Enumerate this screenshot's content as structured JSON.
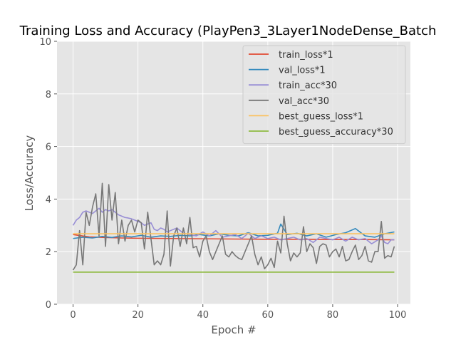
{
  "chart_data": {
    "type": "line",
    "title": "Training Loss and Accuracy (PlayPen3_3Layer1NodeDense_Batch",
    "xlabel": "Epoch #",
    "ylabel": "Loss/Accuracy",
    "xlim": [
      -4.95,
      103.95
    ],
    "ylim": [
      0,
      10
    ],
    "xticks": [
      0,
      20,
      40,
      60,
      80,
      100
    ],
    "yticks": [
      0,
      2,
      4,
      6,
      8,
      10
    ],
    "grid": true,
    "legend_position": "top-right",
    "series": [
      {
        "name": "train_loss*1",
        "color": "#e24a33",
        "x": [
          0,
          5,
          10,
          15,
          20,
          30,
          40,
          50,
          60,
          70,
          80,
          90,
          99
        ],
        "y": [
          2.65,
          2.56,
          2.54,
          2.52,
          2.51,
          2.5,
          2.49,
          2.48,
          2.47,
          2.47,
          2.46,
          2.46,
          2.45
        ]
      },
      {
        "name": "val_loss*1",
        "color": "#348abd",
        "x": [
          0,
          3,
          6,
          9,
          12,
          15,
          18,
          21,
          24,
          27,
          30,
          33,
          36,
          39,
          42,
          45,
          48,
          51,
          54,
          57,
          60,
          63,
          64,
          66,
          69,
          72,
          75,
          78,
          81,
          84,
          87,
          90,
          93,
          96,
          99
        ],
        "y": [
          2.5,
          2.55,
          2.52,
          2.58,
          2.54,
          2.6,
          2.56,
          2.62,
          2.55,
          2.6,
          2.58,
          2.62,
          2.6,
          2.65,
          2.6,
          2.68,
          2.62,
          2.6,
          2.72,
          2.6,
          2.62,
          2.7,
          3.05,
          2.65,
          2.7,
          2.6,
          2.68,
          2.55,
          2.65,
          2.72,
          2.88,
          2.6,
          2.55,
          2.68,
          2.75
        ]
      },
      {
        "name": "train_acc*30",
        "color": "#988ed5",
        "x": [
          0,
          1,
          2,
          3,
          4,
          5,
          6,
          7,
          8,
          9,
          10,
          11,
          12,
          13,
          14,
          15,
          16,
          17,
          18,
          19,
          20,
          21,
          22,
          23,
          24,
          25,
          26,
          27,
          28,
          29,
          30,
          32,
          34,
          36,
          38,
          40,
          42,
          44,
          46,
          48,
          50,
          52,
          54,
          56,
          58,
          60,
          62,
          64,
          66,
          68,
          70,
          72,
          74,
          76,
          78,
          80,
          82,
          84,
          86,
          88,
          90,
          92,
          94,
          95,
          96,
          97,
          98,
          99
        ],
        "y": [
          3.0,
          3.2,
          3.3,
          3.5,
          3.55,
          3.5,
          3.45,
          3.55,
          3.65,
          3.5,
          3.6,
          3.55,
          3.6,
          3.5,
          3.4,
          3.35,
          3.3,
          3.28,
          3.25,
          3.2,
          3.15,
          3.1,
          3.0,
          3.05,
          3.1,
          2.85,
          2.8,
          2.9,
          2.85,
          2.75,
          2.8,
          2.9,
          2.7,
          2.65,
          2.6,
          2.75,
          2.6,
          2.8,
          2.55,
          2.6,
          2.65,
          2.5,
          2.7,
          2.5,
          2.6,
          2.5,
          2.55,
          2.45,
          2.5,
          2.55,
          2.45,
          2.5,
          2.35,
          2.55,
          2.5,
          2.45,
          2.55,
          2.4,
          2.55,
          2.45,
          2.5,
          2.3,
          2.45,
          2.6,
          2.35,
          2.3,
          2.45,
          2.45
        ]
      },
      {
        "name": "val_acc*30",
        "color": "#777777",
        "x": [
          0,
          1,
          2,
          3,
          4,
          5,
          6,
          7,
          8,
          9,
          10,
          11,
          12,
          13,
          14,
          15,
          16,
          17,
          18,
          19,
          20,
          21,
          22,
          23,
          24,
          25,
          26,
          27,
          28,
          29,
          30,
          31,
          32,
          33,
          34,
          35,
          36,
          37,
          38,
          39,
          40,
          41,
          42,
          43,
          44,
          45,
          46,
          47,
          48,
          49,
          50,
          51,
          52,
          53,
          54,
          55,
          56,
          57,
          58,
          59,
          60,
          61,
          62,
          63,
          64,
          65,
          66,
          67,
          68,
          69,
          70,
          71,
          72,
          73,
          74,
          75,
          76,
          77,
          78,
          79,
          80,
          81,
          82,
          83,
          84,
          85,
          86,
          87,
          88,
          89,
          90,
          91,
          92,
          93,
          94,
          95,
          96,
          97,
          98,
          99
        ],
        "y": [
          1.3,
          1.5,
          2.8,
          1.5,
          3.5,
          3.0,
          3.7,
          4.2,
          2.6,
          4.6,
          2.2,
          4.55,
          3.2,
          4.25,
          2.3,
          3.2,
          2.4,
          3.0,
          3.2,
          2.75,
          3.2,
          3.1,
          2.1,
          3.5,
          2.5,
          1.5,
          1.65,
          1.5,
          1.9,
          3.55,
          1.45,
          2.6,
          2.9,
          2.2,
          2.9,
          2.3,
          3.3,
          2.15,
          2.2,
          1.8,
          2.4,
          2.6,
          2.0,
          1.7,
          2.0,
          2.3,
          2.6,
          1.9,
          1.8,
          2.0,
          1.85,
          1.75,
          1.7,
          2.0,
          2.3,
          2.6,
          1.9,
          1.5,
          1.8,
          1.35,
          1.5,
          1.75,
          1.4,
          2.4,
          1.95,
          3.35,
          2.3,
          1.65,
          1.95,
          1.8,
          1.95,
          2.95,
          2.0,
          2.3,
          2.15,
          1.55,
          2.2,
          2.3,
          2.25,
          1.8,
          2.0,
          2.1,
          1.8,
          2.2,
          1.65,
          1.7,
          2.0,
          2.25,
          1.7,
          1.85,
          2.2,
          1.65,
          1.6,
          2.0,
          2.0,
          3.15,
          1.75,
          1.85,
          1.8,
          2.2
        ]
      },
      {
        "name": "best_guess_loss*1",
        "color": "#fbc15e",
        "x": [
          0,
          99
        ],
        "y": [
          2.68,
          2.68
        ]
      },
      {
        "name": "best_guess_accuracy*30",
        "color": "#8eba42",
        "x": [
          0,
          99
        ],
        "y": [
          1.22,
          1.22
        ]
      }
    ]
  }
}
